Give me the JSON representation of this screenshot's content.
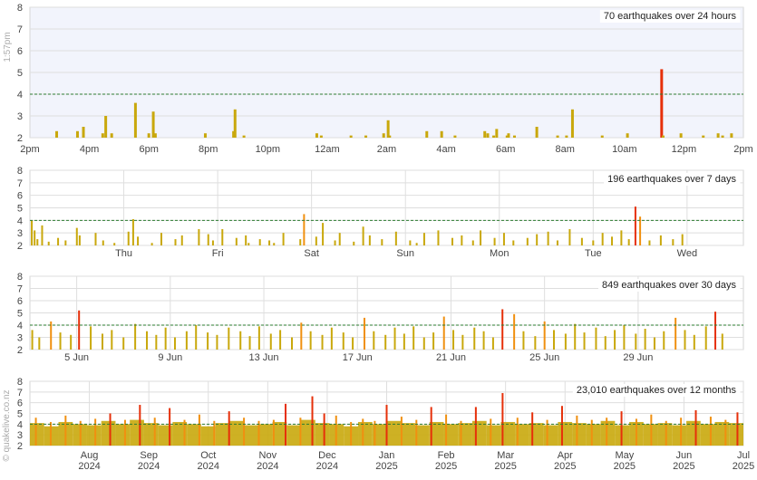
{
  "page": {
    "timestamp": "1:57pm",
    "watermark": "© quakelive.co.nz"
  },
  "colors": {
    "plot_bg": "#f2f4fc",
    "grid": "#dedede",
    "threshold": "#2e7d32",
    "bar_low": "#c9a80c",
    "bar_mid": "#f09010",
    "bar_high": "#e6300a"
  },
  "chart_data": [
    {
      "type": "bar",
      "title": "70 earthquakes over 24 hours",
      "ylim": [
        2,
        8
      ],
      "yticks": [
        2,
        3,
        4,
        5,
        6,
        7,
        8
      ],
      "threshold": 4,
      "grid": true,
      "xtick_labels": [
        "2pm",
        "4pm",
        "6pm",
        "8pm",
        "10pm",
        "12am",
        "2am",
        "4am",
        "6am",
        "8am",
        "10am",
        "12pm",
        "2pm"
      ],
      "x": [
        0.9,
        1.6,
        1.8,
        2.45,
        2.55,
        2.75,
        3.55,
        4.0,
        4.15,
        4.22,
        5.9,
        6.85,
        6.9,
        7.2,
        9.65,
        9.8,
        10.8,
        11.3,
        11.9,
        12.05,
        12.1,
        13.35,
        13.85,
        14.3,
        15.3,
        15.4,
        15.6,
        15.7,
        16.05,
        16.1,
        16.3,
        17.05,
        17.75,
        18.05,
        18.25,
        19.25,
        20.1,
        21.25,
        21.3,
        21.9,
        22.65,
        23.15,
        23.3,
        23.6
      ],
      "values": [
        2.3,
        2.3,
        2.5,
        2.2,
        3.0,
        2.2,
        3.6,
        2.2,
        3.2,
        2.2,
        2.2,
        2.3,
        3.3,
        2.1,
        2.2,
        2.1,
        2.1,
        2.1,
        2.2,
        2.8,
        2.1,
        2.3,
        2.3,
        2.1,
        2.3,
        2.2,
        2.1,
        2.4,
        2.1,
        2.2,
        2.1,
        2.5,
        2.1,
        2.1,
        3.3,
        2.1,
        2.2,
        5.15,
        2.1,
        2.2,
        2.1,
        2.2,
        2.1,
        2.2
      ]
    },
    {
      "type": "bar",
      "title": "196 earthquakes over 7 days",
      "ylim": [
        2,
        8
      ],
      "yticks": [
        2,
        3,
        4,
        5,
        6,
        7,
        8
      ],
      "threshold": 4,
      "grid": true,
      "xtick_labels": [
        "Thu",
        "Fri",
        "Sat",
        "Sun",
        "Mon",
        "Tue",
        "Wed"
      ],
      "x": [
        0.02,
        0.05,
        0.08,
        0.13,
        0.2,
        0.3,
        0.38,
        0.5,
        0.53,
        0.7,
        0.78,
        0.9,
        1.05,
        1.1,
        1.15,
        1.3,
        1.4,
        1.55,
        1.62,
        1.8,
        1.9,
        1.95,
        2.05,
        2.2,
        2.3,
        2.33,
        2.45,
        2.55,
        2.6,
        2.7,
        2.88,
        2.92,
        3.05,
        3.12,
        3.25,
        3.3,
        3.45,
        3.55,
        3.62,
        3.75,
        3.9,
        4.05,
        4.12,
        4.2,
        4.35,
        4.5,
        4.6,
        4.72,
        4.8,
        4.95,
        5.05,
        5.15,
        5.3,
        5.4,
        5.52,
        5.62,
        5.75,
        5.88,
        6.0,
        6.1,
        6.2,
        6.3,
        6.38,
        6.45,
        6.5,
        6.6,
        6.72,
        6.85,
        6.95
      ],
      "values": [
        4.0,
        3.2,
        2.5,
        3.6,
        2.3,
        2.6,
        2.4,
        3.4,
        2.8,
        3.0,
        2.4,
        2.2,
        3.1,
        4.1,
        2.7,
        2.2,
        3.0,
        2.5,
        2.8,
        3.3,
        2.9,
        2.4,
        3.3,
        2.6,
        2.8,
        2.2,
        2.5,
        2.4,
        2.2,
        3.0,
        2.5,
        4.5,
        2.7,
        3.8,
        2.4,
        3.0,
        2.3,
        3.5,
        2.8,
        2.5,
        3.1,
        2.4,
        2.2,
        3.0,
        3.2,
        2.6,
        2.8,
        2.4,
        3.2,
        2.6,
        3.0,
        2.4,
        2.6,
        2.9,
        3.1,
        2.4,
        3.3,
        2.6,
        2.4,
        3.0,
        2.7,
        3.2,
        2.5,
        5.1,
        4.3,
        2.4,
        2.8,
        2.5,
        2.9
      ]
    },
    {
      "type": "bar",
      "title": "849 earthquakes over 30 days",
      "ylim": [
        2,
        8
      ],
      "yticks": [
        2,
        3,
        4,
        5,
        6,
        7,
        8
      ],
      "threshold": 4,
      "grid": true,
      "xtick_labels": [
        "5 Jun",
        "9 Jun",
        "13 Jun",
        "17 Jun",
        "21 Jun",
        "25 Jun",
        "29 Jun"
      ],
      "x": [
        0.1,
        0.4,
        0.9,
        1.3,
        1.75,
        2.1,
        2.6,
        3.1,
        3.5,
        4.0,
        4.5,
        5.0,
        5.4,
        5.8,
        6.2,
        6.7,
        7.1,
        7.6,
        8.0,
        8.5,
        9.0,
        9.4,
        9.8,
        10.3,
        10.7,
        11.2,
        11.6,
        12.0,
        12.5,
        12.9,
        13.4,
        13.8,
        14.3,
        14.7,
        15.2,
        15.6,
        16.0,
        16.4,
        16.85,
        17.25,
        17.7,
        18.1,
        18.5,
        19.0,
        19.4,
        19.8,
        20.2,
        20.7,
        21.1,
        21.6,
        22.0,
        22.4,
        22.9,
        23.3,
        23.7,
        24.2,
        24.6,
        25.0,
        25.4,
        25.9,
        26.3,
        26.7,
        27.1,
        27.6,
        28.0,
        28.4,
        28.9,
        29.3,
        29.6
      ],
      "values": [
        3.6,
        3.0,
        4.3,
        3.4,
        3.2,
        5.2,
        3.9,
        3.3,
        3.6,
        3.0,
        4.1,
        3.5,
        3.2,
        3.8,
        3.0,
        3.5,
        4.0,
        3.4,
        3.2,
        3.8,
        3.5,
        3.1,
        3.9,
        3.3,
        3.6,
        3.0,
        4.2,
        3.5,
        3.2,
        3.8,
        3.4,
        3.0,
        4.6,
        3.5,
        3.2,
        3.8,
        3.3,
        3.9,
        3.0,
        3.4,
        4.7,
        3.6,
        3.2,
        3.8,
        3.5,
        3.0,
        5.3,
        4.9,
        3.5,
        3.1,
        4.3,
        3.6,
        3.3,
        4.1,
        3.4,
        3.8,
        3.1,
        3.6,
        4.0,
        3.3,
        3.7,
        3.0,
        3.5,
        4.6,
        3.6,
        3.2,
        3.9,
        5.1,
        3.3
      ]
    },
    {
      "type": "bar",
      "title": "23,010 earthquakes over 12 months",
      "ylim": [
        2,
        8
      ],
      "yticks": [
        2,
        3,
        4,
        5,
        6,
        7,
        8
      ],
      "threshold": 4,
      "grid": true,
      "xtick_labels": [
        {
          "month": "Aug",
          "year": "2024"
        },
        {
          "month": "Sep",
          "year": "2024"
        },
        {
          "month": "Oct",
          "year": "2024"
        },
        {
          "month": "Nov",
          "year": "2024"
        },
        {
          "month": "Dec",
          "year": "2024"
        },
        {
          "month": "Jan",
          "year": "2025"
        },
        {
          "month": "Feb",
          "year": "2025"
        },
        {
          "month": "Mar",
          "year": "2025"
        },
        {
          "month": "Apr",
          "year": "2025"
        },
        {
          "month": "May",
          "year": "2025"
        },
        {
          "month": "Jun",
          "year": "2025"
        },
        {
          "month": "Jul",
          "year": "2025"
        }
      ],
      "x": [
        0.1,
        0.35,
        0.6,
        0.85,
        1.1,
        1.35,
        1.6,
        1.85,
        2.1,
        2.35,
        2.6,
        2.85,
        3.1,
        3.35,
        3.6,
        3.85,
        4.1,
        4.3,
        4.55,
        4.75,
        4.95,
        5.15,
        5.4,
        5.6,
        5.8,
        6.0,
        6.25,
        6.5,
        6.75,
        7.0,
        7.25,
        7.5,
        7.75,
        7.95,
        8.2,
        8.45,
        8.7,
        8.95,
        9.2,
        9.45,
        9.7,
        9.95,
        10.2,
        10.45,
        10.7,
        10.95,
        11.2,
        11.45,
        11.7,
        11.9
      ],
      "values": [
        4.6,
        4.2,
        4.8,
        4.3,
        4.5,
        5.0,
        4.4,
        5.8,
        4.6,
        5.5,
        4.4,
        4.9,
        4.3,
        5.2,
        4.6,
        4.3,
        4.4,
        5.9,
        4.6,
        6.6,
        5.0,
        4.8,
        4.2,
        4.5,
        4.3,
        5.8,
        4.7,
        4.4,
        5.6,
        4.9,
        4.3,
        5.6,
        4.5,
        6.9,
        4.6,
        5.1,
        4.4,
        5.7,
        4.8,
        4.4,
        4.6,
        5.2,
        4.5,
        4.9,
        4.3,
        4.6,
        5.3,
        4.7,
        4.4,
        5.1
      ],
      "base_values": [
        4.1,
        3.8,
        4.2,
        4.0,
        3.9,
        4.3,
        4.0,
        4.4,
        4.1,
        3.9,
        4.2,
        4.0,
        3.8,
        4.1,
        4.3,
        3.9,
        4.0,
        4.2,
        3.9,
        4.4,
        4.1,
        4.0,
        3.8,
        4.2,
        4.0,
        4.3,
        4.1,
        3.9,
        4.2,
        4.0,
        4.1,
        4.3,
        3.9,
        4.2,
        4.0,
        4.1,
        3.9,
        4.2,
        4.1,
        4.0,
        4.3,
        3.9,
        4.2,
        4.0,
        4.1,
        3.9,
        4.3,
        4.0,
        4.2,
        4.1
      ]
    }
  ]
}
